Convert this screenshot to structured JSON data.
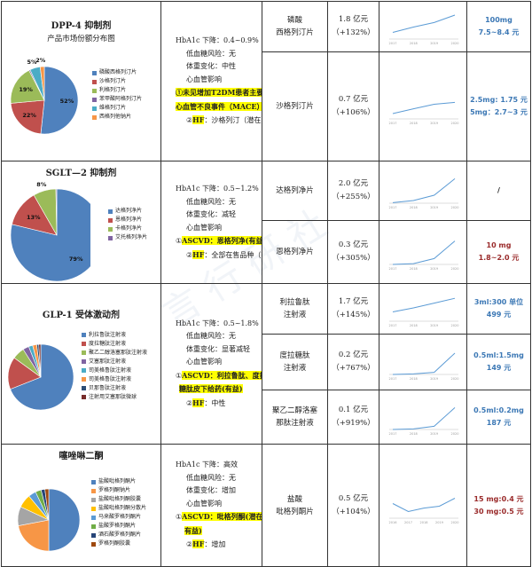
{
  "sections": [
    {
      "class_title": "DPP-4 抑制剂",
      "class_subtitle": "产品市场份额分布图",
      "pie": [
        {
          "name": "磷酸西格列汀片",
          "share": 52,
          "label": "52%",
          "color": "#4f81bd"
        },
        {
          "name": "沙格列汀片",
          "share": 22,
          "label": "22%",
          "color": "#c0504d"
        },
        {
          "name": "利格列汀片",
          "share": 19,
          "label": "19%",
          "color": "#9bbb59"
        },
        {
          "name": "苯甲酸阿格列汀片",
          "share": 0.6,
          "label": "",
          "color": "#8064a2"
        },
        {
          "name": "维格列汀片",
          "share": 5,
          "label": "5%",
          "color": "#4bacc6"
        },
        {
          "name": "西格列他钠片",
          "share": 2,
          "label": "2%",
          "color": "#f79646"
        }
      ],
      "effects": [
        {
          "t": "HbA1c 下降：0.4~0.9%",
          "s": "plain"
        },
        {
          "t": "低血糖风险：无",
          "s": "indent"
        },
        {
          "t": "体重变化：中性",
          "s": "indent"
        },
        {
          "t": "心血管影响",
          "s": "indent"
        },
        {
          "t": "①未见增加T2DM患者主要",
          "s": "hl"
        },
        {
          "t": "心血管不良事件（MACE）",
          "s": "hl"
        },
        {
          "t": "②HF：沙格列汀（潜在）",
          "s": "hf"
        }
      ]
    },
    {
      "class_title": "SGLT—2 抑制剂",
      "pie": [
        {
          "name": "达格列净片",
          "share": 79,
          "label": "79%",
          "color": "#4f81bd"
        },
        {
          "name": "恩格列净片",
          "share": 13,
          "label": "13%",
          "color": "#c0504d"
        },
        {
          "name": "卡格列净片",
          "share": 8,
          "label": "8%",
          "color": "#9bbb59"
        },
        {
          "name": "艾托格列净片",
          "share": 0.3,
          "label": "",
          "color": "#8064a2"
        }
      ],
      "effects": [
        {
          "t": "HbA1c 下降：0.5~1.2%",
          "s": "plain"
        },
        {
          "t": "低血糖风险：无",
          "s": "indent"
        },
        {
          "t": "体重变化：减轻",
          "s": "indent"
        },
        {
          "t": "心血管影响",
          "s": "indent"
        },
        {
          "t": "①ASCVD：恩格列净(有益)",
          "s": "ascvd"
        },
        {
          "t": "②HF：全部在售品种（有益）",
          "s": "hf"
        }
      ]
    },
    {
      "class_title": "GLP-1 受体激动剂",
      "pie": [
        {
          "name": "利拉鲁肽注射液",
          "share": 69,
          "color": "#4f81bd"
        },
        {
          "name": "度拉糖肽注射液",
          "share": 16,
          "color": "#c0504d"
        },
        {
          "name": "聚乙二醇洛塞那肽注射液",
          "share": 6,
          "color": "#9bbb59"
        },
        {
          "name": "艾塞那肽注射液",
          "share": 3,
          "color": "#8064a2"
        },
        {
          "name": "司美格鲁肽注射液",
          "share": 2,
          "color": "#4bacc6"
        },
        {
          "name": "司美格鲁肽注射液",
          "share": 2,
          "color": "#f79646"
        },
        {
          "name": "贝那鲁肽注射液",
          "share": 1,
          "color": "#2c4d75"
        },
        {
          "name": "注射用艾塞那肽微球",
          "share": 1,
          "color": "#772c2a"
        }
      ],
      "effects": [
        {
          "t": "HbA1c 下降：0.5~1.8%",
          "s": "plain"
        },
        {
          "t": "低血糖风险：无",
          "s": "indent"
        },
        {
          "t": "体重变化：显著减轻",
          "s": "indent"
        },
        {
          "t": "心血管影响",
          "s": "indent"
        },
        {
          "t": "①ASCVD：利拉鲁肽、度拉",
          "s": "ascvd"
        },
        {
          "t": "糖肽皮下给药(有益)",
          "s": "hlcont"
        },
        {
          "t": "②HF：中性",
          "s": "hf"
        }
      ]
    },
    {
      "class_title": "噻唑啉二酮",
      "pie": [
        {
          "name": "盐酸吡格列酮片",
          "share": 50,
          "color": "#4f81bd"
        },
        {
          "name": "罗格列酮钠片",
          "share": 22,
          "color": "#f79646"
        },
        {
          "name": "盐酸吡格列酮胶囊",
          "share": 10,
          "color": "#a5a5a5"
        },
        {
          "name": "盐酸吡格列酮分散片",
          "share": 7,
          "color": "#ffc000"
        },
        {
          "name": "马来酸罗格列酮片",
          "share": 4,
          "color": "#5b9bd5"
        },
        {
          "name": "盐酸罗格列酮片",
          "share": 3,
          "color": "#70ad47"
        },
        {
          "name": "酒石酸罗格列酮片",
          "share": 2,
          "color": "#264478"
        },
        {
          "name": "罗格列酮胶囊",
          "share": 2,
          "color": "#9e480e"
        }
      ],
      "effects": [
        {
          "t": "HbA1c 下降：高效",
          "s": "plain"
        },
        {
          "t": "低血糖风险：无",
          "s": "indent"
        },
        {
          "t": "体重变化：增加",
          "s": "indent"
        },
        {
          "t": "心血管影响",
          "s": "indent"
        },
        {
          "t": "①ASCVD：吡格列酮(潜在",
          "s": "ascvd"
        },
        {
          "t": "有益)",
          "s": "hlcont2"
        },
        {
          "t": "②HF：增加",
          "s": "hf"
        }
      ]
    }
  ],
  "drugs": [
    {
      "name": [
        "磷酸",
        "西格列汀片"
      ],
      "sales": "1.8 亿元",
      "growth": "（+132%）",
      "trend": [
        0.25,
        0.45,
        0.62,
        0.9
      ],
      "x_ticks": [
        "2017",
        "2018",
        "2019",
        "2020"
      ],
      "price": [
        "100mg",
        "7.5~8.4 元"
      ],
      "price_color": "blue"
    },
    {
      "name": [
        "沙格列汀片"
      ],
      "sales": "0.7 亿元",
      "growth": "（+106%）",
      "trend": [
        0.2,
        0.38,
        0.55,
        0.62
      ],
      "x_ticks": [
        "2017",
        "2018",
        "2019",
        "2020"
      ],
      "price": [
        "2.5mg: 1.75 元",
        "5mg：2.7~3 元"
      ],
      "price_color": "blue"
    },
    {
      "name": [
        "达格列净片"
      ],
      "sales": "2.0 亿元",
      "growth": "（+255%）",
      "trend": [
        0.02,
        0.1,
        0.3,
        0.92
      ],
      "x_ticks": [
        "2017",
        "2018",
        "2019",
        "2020"
      ],
      "price": [
        "/"
      ],
      "price_color": "dark"
    },
    {
      "name": [
        "恩格列净片"
      ],
      "sales": "0.3 亿元",
      "growth": "（+305%）",
      "trend": [
        0.0,
        0.03,
        0.22,
        0.88
      ],
      "x_ticks": [
        "2017",
        "2018",
        "2019",
        "2020"
      ],
      "price": [
        "10 mg",
        "1.8~2.0 元"
      ],
      "price_color": "red"
    },
    {
      "name": [
        "利拉鲁肽",
        "注射液"
      ],
      "sales": "1.7 亿元",
      "growth": "（+145%）",
      "trend": [
        0.35,
        0.5,
        0.68,
        0.86
      ],
      "x_ticks": [
        "2017",
        "2018",
        "2019",
        "2020"
      ],
      "price": [
        "3ml:300 单位",
        "499 元"
      ],
      "price_color": "blue"
    },
    {
      "name": [
        "度拉糖肽",
        "注射液"
      ],
      "sales": "0.2 亿元",
      "growth": "（+767%）",
      "trend": [
        0.0,
        0.02,
        0.08,
        0.8
      ],
      "x_ticks": [
        "2017",
        "2018",
        "2019",
        "2020"
      ],
      "price": [
        "0.5ml:1.5mg",
        "149 元"
      ],
      "price_color": "blue"
    },
    {
      "name": [
        "聚乙二醇洛塞",
        "那肽注射液"
      ],
      "sales": "0.1 亿元",
      "growth": "（+919%）",
      "trend": [
        0.0,
        0.02,
        0.12,
        0.82
      ],
      "x_ticks": [
        "2017",
        "2018",
        "2019",
        "2020"
      ],
      "price": [
        "0.5ml:0.2mg",
        "187 元"
      ],
      "price_color": "blue"
    },
    {
      "name": [
        "盐酸",
        "吡格列酮片"
      ],
      "sales": "0.5 亿元",
      "growth": "（+104%）",
      "trend": [
        0.55,
        0.25,
        0.38,
        0.45,
        0.75
      ],
      "x_ticks": [
        "2016",
        "2017",
        "2018",
        "2019",
        "2020"
      ],
      "price": [
        "15 mg:0.4 元",
        "30 mg:0.5 元"
      ],
      "price_color": "red"
    }
  ],
  "watermark": "言 行 研 社"
}
